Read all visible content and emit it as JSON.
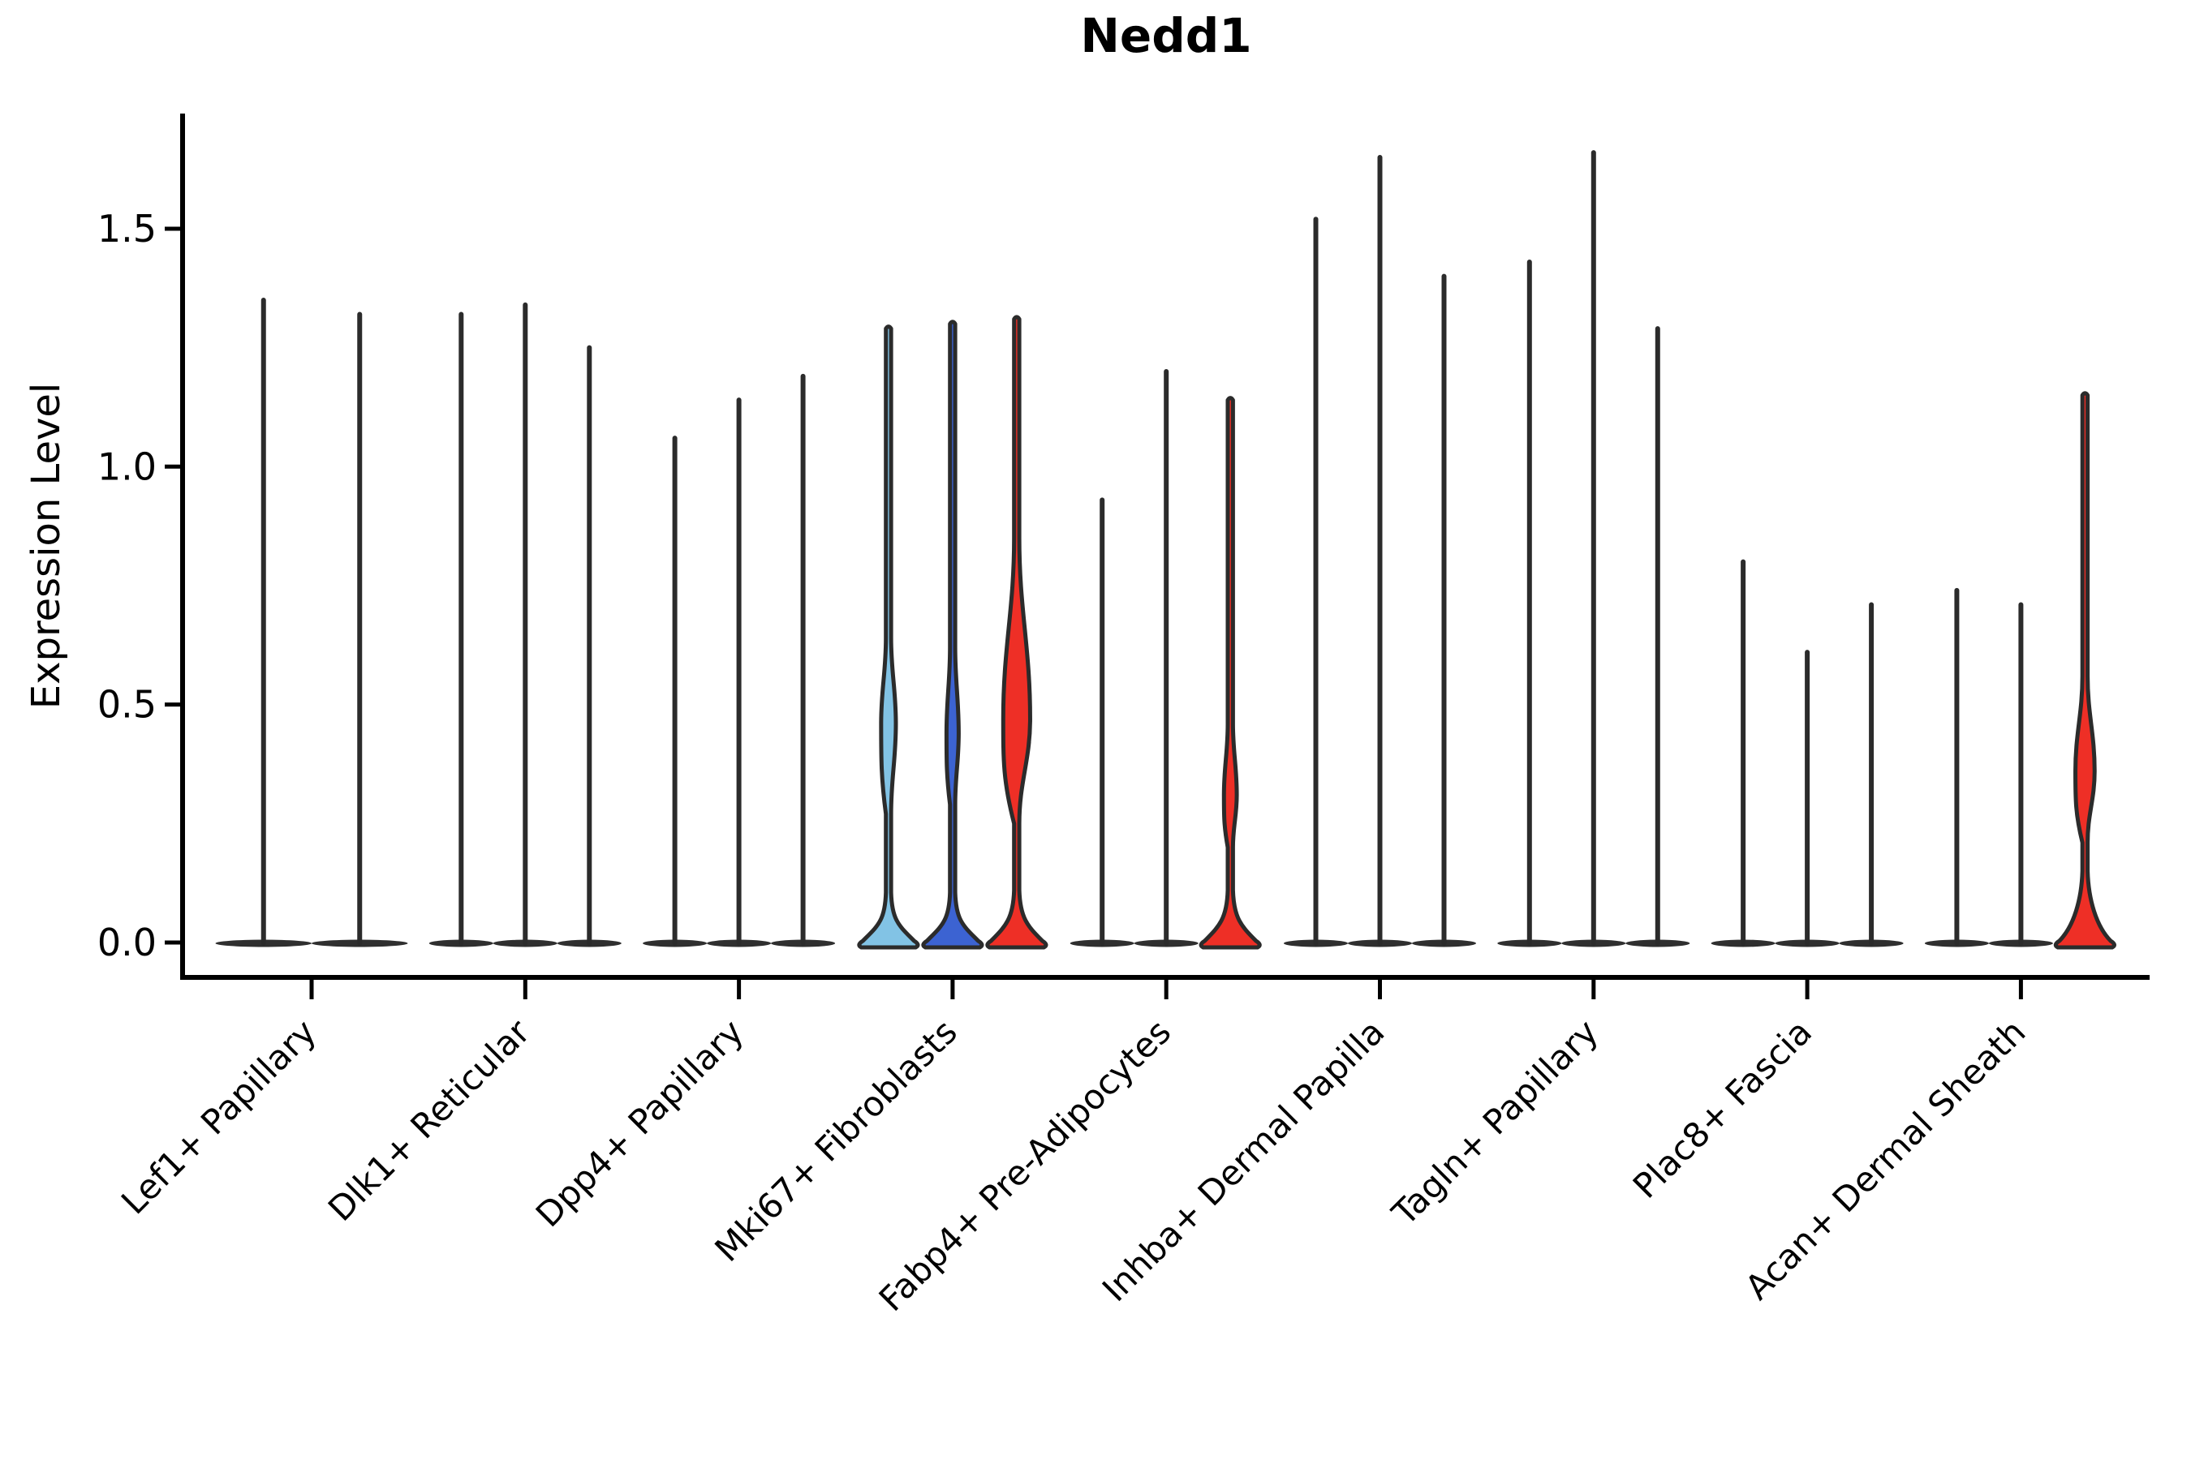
{
  "title": "Nedd1",
  "axes": {
    "y_label": "Expression Level",
    "y_tick_labels": [
      "0.0",
      "0.5",
      "1.0",
      "1.5"
    ],
    "y_tick_values": [
      0.0,
      0.5,
      1.0,
      1.5
    ]
  },
  "colors": {
    "light_blue": "#82C3E5",
    "blue": "#3C63D2",
    "red": "#EE2F26",
    "outline": "#2B2B2B",
    "axis": "#000000",
    "base_fill": "#2F2F2F"
  },
  "chart_data": {
    "type": "violin",
    "title": "Nedd1",
    "ylabel": "Expression Level",
    "ylim": [
      -0.07,
      1.74
    ],
    "yticks": [
      0.0,
      0.5,
      1.0,
      1.5
    ],
    "grid": false,
    "legend": "none",
    "categories": [
      "Lef1+ Papillary",
      "Dlk1+ Reticular",
      "Dpp4+ Papillary",
      "Mki67+ Fibroblasts",
      "Fabp4+ Pre-Adipocytes",
      "Inhba+ Dermal Papilla",
      "Tagln+ Papillary",
      "Plac8+ Fascia",
      "Acan+ Dermal Sheath"
    ],
    "groups": [
      {
        "category": "Lef1+ Papillary",
        "violins": [
          {
            "max": 1.35,
            "fill": null
          },
          {
            "max": 1.32,
            "fill": null
          }
        ]
      },
      {
        "category": "Dlk1+ Reticular",
        "violins": [
          {
            "max": 1.32,
            "fill": null
          },
          {
            "max": 1.34,
            "fill": null
          },
          {
            "max": 1.25,
            "fill": null
          }
        ]
      },
      {
        "category": "Dpp4+ Papillary",
        "violins": [
          {
            "max": 1.06,
            "fill": null
          },
          {
            "max": 1.14,
            "fill": null
          },
          {
            "max": 1.19,
            "fill": null
          }
        ]
      },
      {
        "category": "Mki67+ Fibroblasts",
        "violins": [
          {
            "max": 1.29,
            "fill": "light_blue",
            "bulge": {
              "lo": 0.27,
              "peak": 0.46,
              "hi": 0.64,
              "halfwidth": 0.115
            },
            "base": {
              "top": 0.105
            }
          },
          {
            "max": 1.3,
            "fill": "blue",
            "bulge": {
              "lo": 0.29,
              "peak": 0.44,
              "hi": 0.62,
              "halfwidth": 0.095
            },
            "base": {
              "top": 0.105
            }
          },
          {
            "max": 1.31,
            "fill": "red",
            "bulge": {
              "lo": 0.25,
              "peak": 0.47,
              "hi": 0.85,
              "halfwidth": 0.21
            },
            "base": {
              "top": 0.11
            }
          }
        ]
      },
      {
        "category": "Fabp4+ Pre-Adipocytes",
        "violins": [
          {
            "max": 0.93,
            "fill": null
          },
          {
            "max": 1.2,
            "fill": null
          },
          {
            "max": 1.14,
            "fill": "red",
            "bulge": {
              "lo": 0.2,
              "peak": 0.31,
              "hi": 0.46,
              "halfwidth": 0.1
            },
            "base": {
              "top": 0.11
            }
          }
        ]
      },
      {
        "category": "Inhba+ Dermal Papilla",
        "violins": [
          {
            "max": 1.52,
            "fill": null
          },
          {
            "max": 1.65,
            "fill": null
          },
          {
            "max": 1.4,
            "fill": null
          }
        ]
      },
      {
        "category": "Tagln+ Papillary",
        "violins": [
          {
            "max": 1.43,
            "fill": null
          },
          {
            "max": 1.66,
            "fill": null
          },
          {
            "max": 1.29,
            "fill": null
          }
        ]
      },
      {
        "category": "Plac8+ Fascia",
        "violins": [
          {
            "max": 0.8,
            "fill": null
          },
          {
            "max": 0.61,
            "fill": null
          },
          {
            "max": 0.71,
            "fill": null
          }
        ]
      },
      {
        "category": "Acan+ Dermal Sheath",
        "violins": [
          {
            "max": 0.74,
            "fill": null
          },
          {
            "max": 0.71,
            "fill": null
          },
          {
            "max": 1.15,
            "fill": "red",
            "bulge": {
              "lo": 0.21,
              "peak": 0.36,
              "hi": 0.56,
              "halfwidth": 0.15
            },
            "base": {
              "top": 0.15
            }
          }
        ]
      }
    ]
  }
}
